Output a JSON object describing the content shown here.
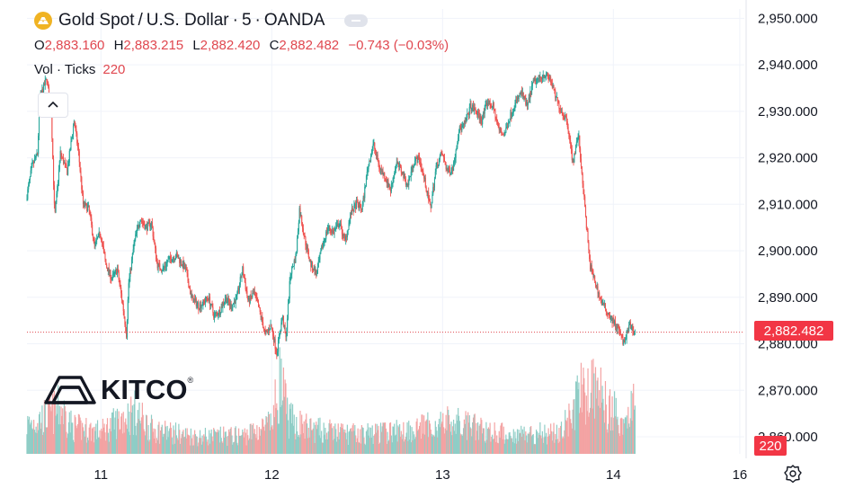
{
  "header": {
    "symbol_name": "Gold Spot",
    "currency": "U.S. Dollar",
    "interval": "5",
    "source": "OANDA",
    "separator": "·",
    "slash": "/"
  },
  "ohlc": {
    "o_label": "O",
    "o_value": "2,883.160",
    "h_label": "H",
    "h_value": "2,883.215",
    "l_label": "L",
    "l_value": "2,882.420",
    "c_label": "C",
    "c_value": "2,882.482",
    "change": "−0.743 (−0.03%)"
  },
  "volume_legend": {
    "label": "Vol · Ticks",
    "value": "220"
  },
  "brand": {
    "name": "KITCO",
    "reg": "®"
  },
  "last_price_label": "2,882.482",
  "last_volume_label": "220",
  "icons": {
    "symbol": "gold-bars-icon",
    "collapse": "chevron-up-icon",
    "settings": "settings-icon"
  },
  "colors": {
    "up": "#26a69a",
    "down": "#ef5350",
    "up_vol": "#8fcdc6",
    "down_vol": "#f3a3a3",
    "label_bg": "#f23645",
    "grid": "#f0f3fa"
  },
  "chart_data": {
    "type": "candlestick",
    "title": "Gold Spot / U.S. Dollar · 5 · OANDA",
    "ylim": [
      2860,
      2952
    ],
    "y_ticks": [
      "2,950.000",
      "2,940.000",
      "2,930.000",
      "2,920.000",
      "2,910.000",
      "2,900.000",
      "2,890.000",
      "2,880.000",
      "2,870.000",
      "2,860.000"
    ],
    "y_tick_values": [
      2950,
      2940,
      2930,
      2920,
      2910,
      2900,
      2890,
      2880,
      2870,
      2860
    ],
    "x_ticks": [
      "11",
      "12",
      "13",
      "14",
      "16"
    ],
    "x_tick_positions": [
      0.95,
      2.45,
      3.95,
      5.45,
      6.56
    ],
    "x_range": [
      0.3,
      6.6
    ],
    "last_price": 2882.482,
    "price_path": [
      [
        0.3,
        2911
      ],
      [
        0.35,
        2918
      ],
      [
        0.4,
        2921
      ],
      [
        0.42,
        2933
      ],
      [
        0.48,
        2937
      ],
      [
        0.52,
        2930
      ],
      [
        0.55,
        2907
      ],
      [
        0.6,
        2921
      ],
      [
        0.66,
        2917
      ],
      [
        0.72,
        2928
      ],
      [
        0.76,
        2921
      ],
      [
        0.8,
        2910
      ],
      [
        0.85,
        2909
      ],
      [
        0.9,
        2901
      ],
      [
        0.95,
        2904
      ],
      [
        1.0,
        2897
      ],
      [
        1.05,
        2894
      ],
      [
        1.1,
        2896
      ],
      [
        1.15,
        2888
      ],
      [
        1.18,
        2882
      ],
      [
        1.2,
        2893
      ],
      [
        1.25,
        2902
      ],
      [
        1.3,
        2907
      ],
      [
        1.35,
        2905
      ],
      [
        1.4,
        2906
      ],
      [
        1.45,
        2897
      ],
      [
        1.5,
        2896
      ],
      [
        1.55,
        2898
      ],
      [
        1.62,
        2899
      ],
      [
        1.7,
        2896
      ],
      [
        1.75,
        2890
      ],
      [
        1.82,
        2888
      ],
      [
        1.9,
        2890
      ],
      [
        1.95,
        2886
      ],
      [
        2.0,
        2887
      ],
      [
        2.05,
        2890
      ],
      [
        2.1,
        2888
      ],
      [
        2.15,
        2890
      ],
      [
        2.2,
        2896
      ],
      [
        2.25,
        2889
      ],
      [
        2.3,
        2891
      ],
      [
        2.35,
        2887
      ],
      [
        2.4,
        2882
      ],
      [
        2.45,
        2884
      ],
      [
        2.5,
        2878
      ],
      [
        2.55,
        2886
      ],
      [
        2.58,
        2881
      ],
      [
        2.62,
        2895
      ],
      [
        2.67,
        2899
      ],
      [
        2.7,
        2909
      ],
      [
        2.75,
        2902
      ],
      [
        2.8,
        2897
      ],
      [
        2.85,
        2895
      ],
      [
        2.9,
        2901
      ],
      [
        2.95,
        2905
      ],
      [
        3.0,
        2904
      ],
      [
        3.05,
        2906
      ],
      [
        3.1,
        2902
      ],
      [
        3.15,
        2908
      ],
      [
        3.2,
        2910
      ],
      [
        3.25,
        2909
      ],
      [
        3.3,
        2918
      ],
      [
        3.35,
        2923
      ],
      [
        3.4,
        2918
      ],
      [
        3.45,
        2916
      ],
      [
        3.5,
        2913
      ],
      [
        3.55,
        2919
      ],
      [
        3.6,
        2917
      ],
      [
        3.65,
        2914
      ],
      [
        3.7,
        2919
      ],
      [
        3.75,
        2920
      ],
      [
        3.8,
        2915
      ],
      [
        3.85,
        2909
      ],
      [
        3.9,
        2918
      ],
      [
        3.95,
        2921
      ],
      [
        4.0,
        2917
      ],
      [
        4.05,
        2918
      ],
      [
        4.1,
        2926
      ],
      [
        4.15,
        2927
      ],
      [
        4.2,
        2931
      ],
      [
        4.25,
        2930
      ],
      [
        4.3,
        2928
      ],
      [
        4.35,
        2932
      ],
      [
        4.4,
        2931
      ],
      [
        4.45,
        2926
      ],
      [
        4.5,
        2925
      ],
      [
        4.55,
        2929
      ],
      [
        4.6,
        2932
      ],
      [
        4.65,
        2934
      ],
      [
        4.7,
        2931
      ],
      [
        4.75,
        2936
      ],
      [
        4.8,
        2937
      ],
      [
        4.85,
        2938
      ],
      [
        4.9,
        2937
      ],
      [
        4.95,
        2933
      ],
      [
        5.0,
        2930
      ],
      [
        5.05,
        2928
      ],
      [
        5.1,
        2919
      ],
      [
        5.15,
        2925
      ],
      [
        5.2,
        2911
      ],
      [
        5.25,
        2897
      ],
      [
        5.3,
        2893
      ],
      [
        5.35,
        2889
      ],
      [
        5.4,
        2887
      ],
      [
        5.45,
        2885
      ],
      [
        5.5,
        2883
      ],
      [
        5.55,
        2880
      ],
      [
        5.6,
        2884
      ],
      [
        5.64,
        2882.5
      ]
    ],
    "volume_ylim": [
      0,
      400
    ],
    "volume_profile": [
      [
        0.3,
        120
      ],
      [
        0.5,
        160
      ],
      [
        0.6,
        190
      ],
      [
        0.7,
        110
      ],
      [
        0.95,
        90
      ],
      [
        1.15,
        150
      ],
      [
        1.25,
        170
      ],
      [
        1.4,
        100
      ],
      [
        1.8,
        70
      ],
      [
        2.2,
        75
      ],
      [
        2.45,
        120
      ],
      [
        2.52,
        300
      ],
      [
        2.6,
        140
      ],
      [
        2.8,
        100
      ],
      [
        3.2,
        80
      ],
      [
        3.5,
        90
      ],
      [
        3.8,
        110
      ],
      [
        4.0,
        130
      ],
      [
        4.5,
        80
      ],
      [
        5.0,
        90
      ],
      [
        5.15,
        240
      ],
      [
        5.25,
        280
      ],
      [
        5.4,
        200
      ],
      [
        5.55,
        130
      ],
      [
        5.64,
        220
      ]
    ]
  }
}
